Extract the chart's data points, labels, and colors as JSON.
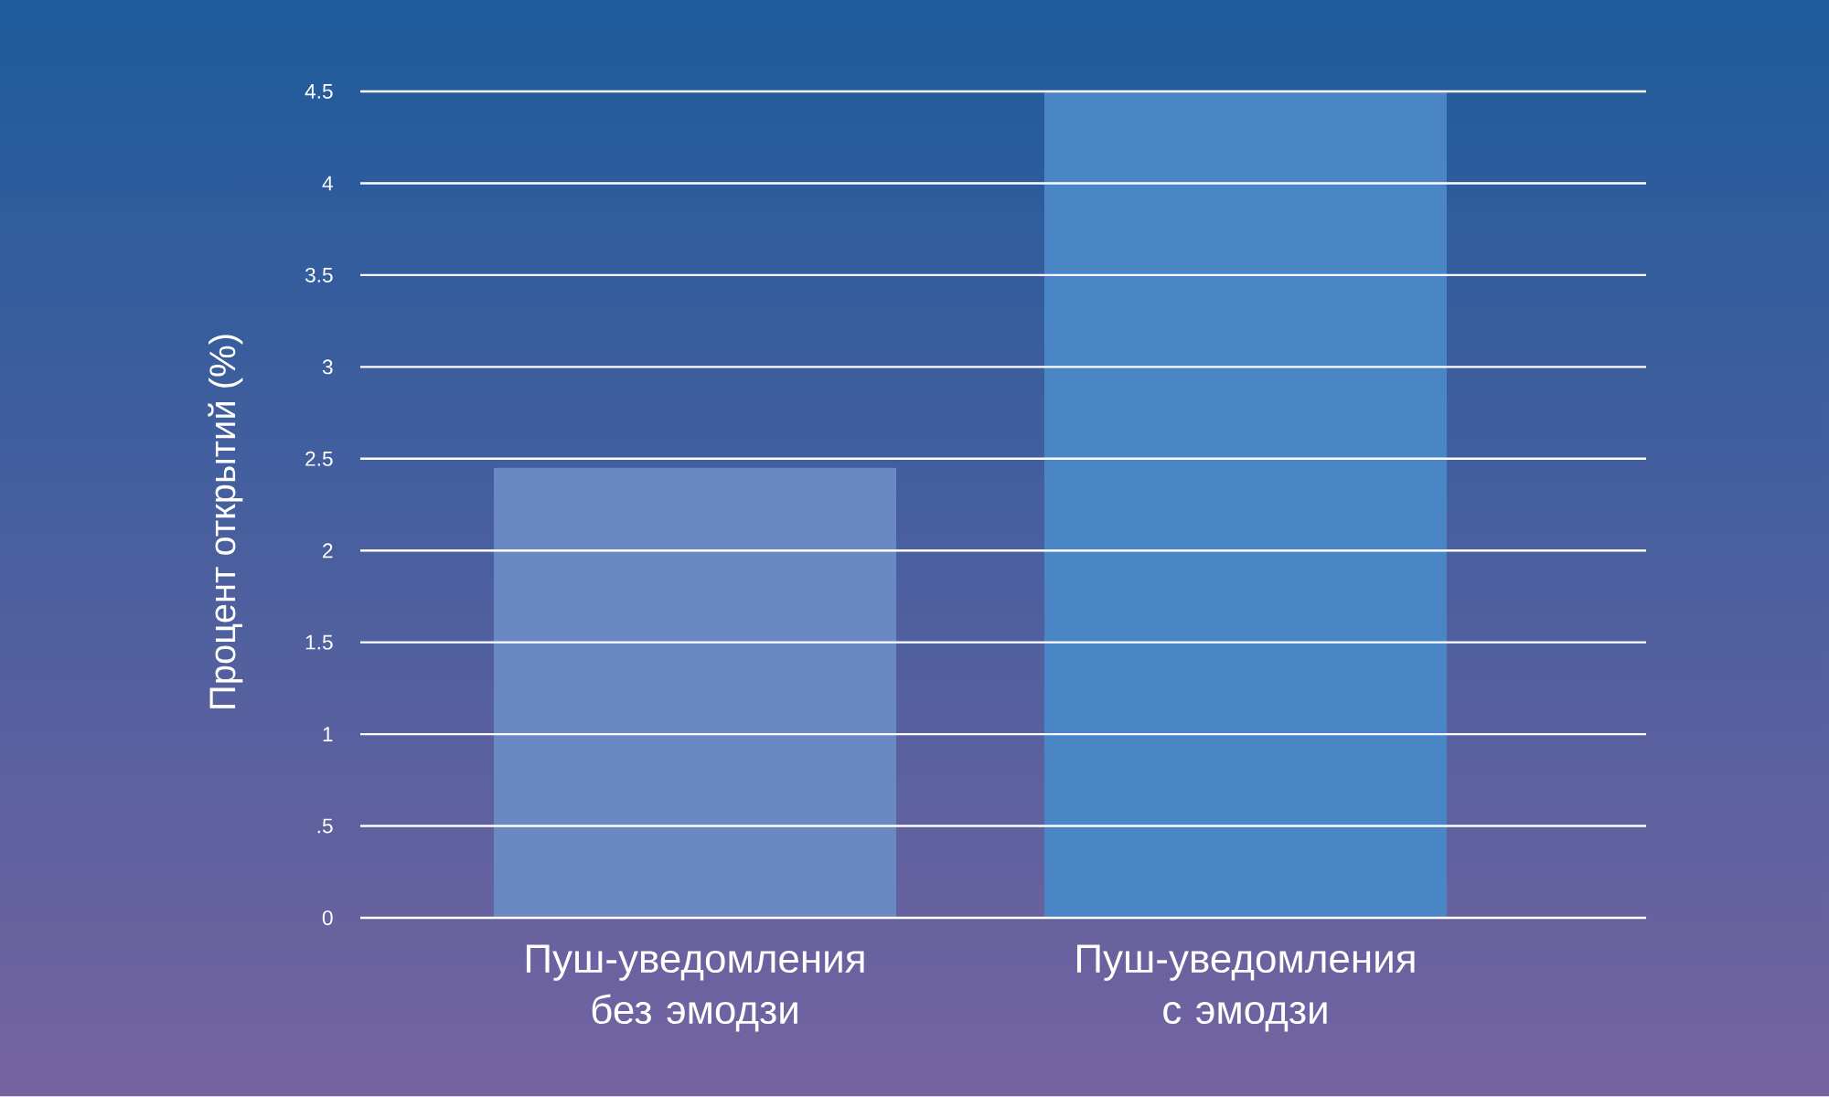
{
  "chart_data": {
    "type": "bar",
    "ylabel": "Процент открытий (%)",
    "categories": [
      "Пуш-уведомления без эмодзи",
      "Пуш-уведомления с эмодзи"
    ],
    "values": [
      2.45,
      4.5
    ],
    "colors": [
      "#6a88c2",
      "#4a86c6"
    ],
    "ylim": [
      0,
      4.5
    ],
    "yticks": [
      0,
      {
        "value": 0.5,
        "label": ".5"
      },
      1,
      1.5,
      2,
      2.5,
      3,
      3.5,
      4,
      4.5
    ],
    "grid": "y"
  }
}
